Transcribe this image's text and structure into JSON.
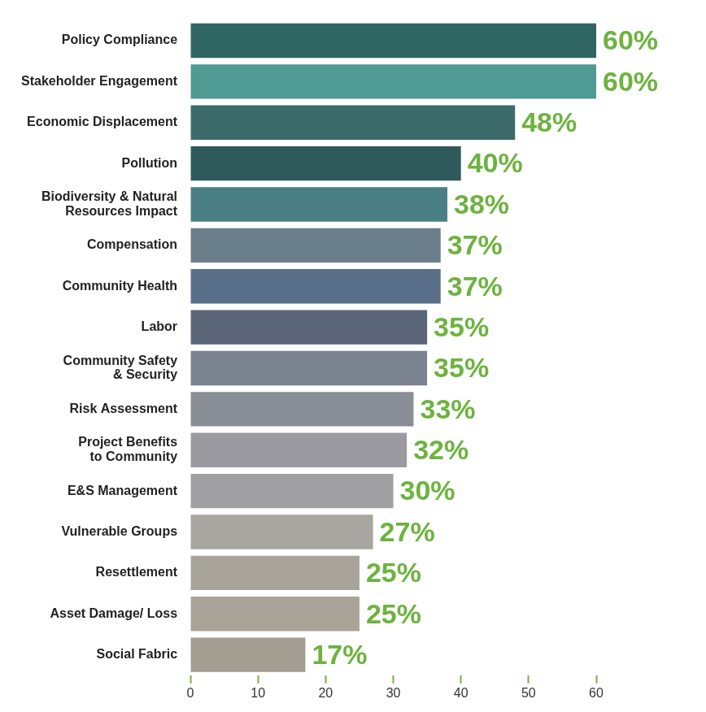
{
  "chart_data": {
    "type": "bar",
    "orientation": "horizontal",
    "categories": [
      "Policy Compliance",
      "Stakeholder Engagement",
      "Economic Displacement",
      "Pollution",
      "Biodiversity & Natural Resources Impact",
      "Compensation",
      "Community Health",
      "Labor",
      "Community Safety & Security",
      "Risk Assessment",
      "Project Benefits to Community",
      "E&S Management",
      "Vulnerable Groups",
      "Resettlement",
      "Asset Damage/ Loss",
      "Social Fabric"
    ],
    "values": [
      60,
      60,
      48,
      40,
      38,
      37,
      37,
      35,
      35,
      33,
      32,
      30,
      27,
      25,
      25,
      17
    ],
    "value_labels": [
      "60%",
      "60%",
      "48%",
      "40%",
      "38%",
      "37%",
      "37%",
      "35%",
      "35%",
      "33%",
      "32%",
      "30%",
      "27%",
      "25%",
      "25%",
      "17%"
    ],
    "colors": [
      "#2f6664",
      "#4f9a92",
      "#3d6a6a",
      "#2f5a5c",
      "#4a7f86",
      "#6a7f8a",
      "#5a6f8a",
      "#5a6678",
      "#7a8290",
      "#8a8e96",
      "#9a9aa0",
      "#a0a0a2",
      "#a8a6a0",
      "#a9a49a",
      "#aaa397",
      "#a39d92"
    ],
    "xlim": [
      0,
      60
    ],
    "xticks": [
      0,
      10,
      20,
      30,
      40,
      50,
      60
    ],
    "grid": false,
    "data_labels": true
  }
}
